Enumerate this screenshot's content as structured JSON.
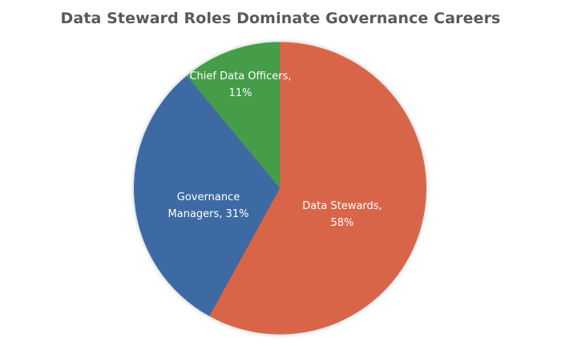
{
  "chart_data": {
    "type": "pie",
    "title": "Data Steward Roles Dominate Governance Careers",
    "categories": [
      "Data Stewards",
      "Governance Managers",
      "Chief Data Officers"
    ],
    "values": [
      58,
      31,
      11
    ],
    "unit": "%",
    "colors": [
      "#d9654a",
      "#3e6aa3",
      "#459c4a"
    ],
    "labels": [
      {
        "line1": "Data Stewards,",
        "line2": "58%"
      },
      {
        "line1": "Governance",
        "line2": "Managers, 31%"
      },
      {
        "line1": "Chief Data Officers,",
        "line2": "11%"
      }
    ],
    "start_angle_deg": 0,
    "direction": "clockwise",
    "legend": "none",
    "data_labels": "inside"
  }
}
